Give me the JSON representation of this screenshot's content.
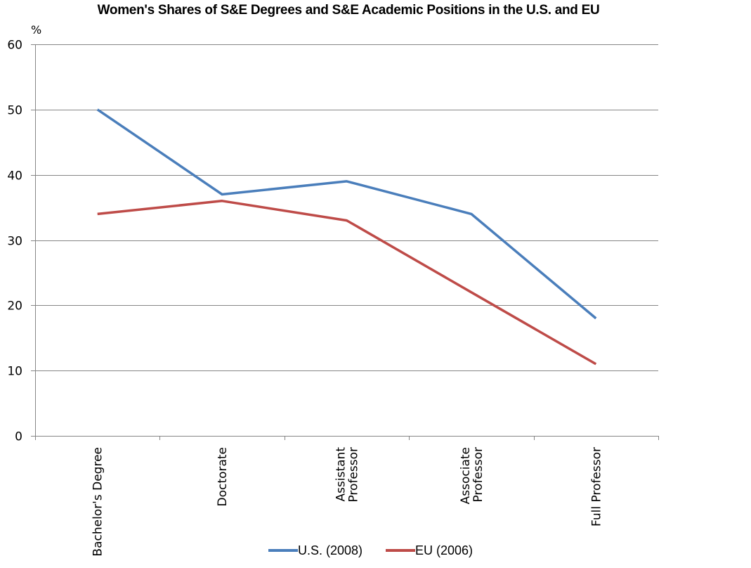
{
  "chart_data": {
    "type": "line",
    "title": "Women's Shares of S&E Degrees and S&E Academic Positions in the U.S. and EU",
    "ylabel": "%",
    "xlabel": "",
    "ylim": [
      0,
      60
    ],
    "yticks": [
      0,
      10,
      20,
      30,
      40,
      50,
      60
    ],
    "grid": true,
    "legend_position": "bottom",
    "categories": [
      [
        "Bachelor's Degree"
      ],
      [
        "Doctorate"
      ],
      [
        "Assistant",
        "Professor"
      ],
      [
        "Associate",
        "Professor"
      ],
      [
        "Full Professor"
      ]
    ],
    "series": [
      {
        "name": "U.S. (2008)",
        "color": "#4a7ebb",
        "values": [
          50,
          37,
          39,
          34,
          18
        ]
      },
      {
        "name": "EU (2006)",
        "color": "#be4b48",
        "values": [
          34,
          36,
          33,
          22,
          11
        ]
      }
    ]
  }
}
